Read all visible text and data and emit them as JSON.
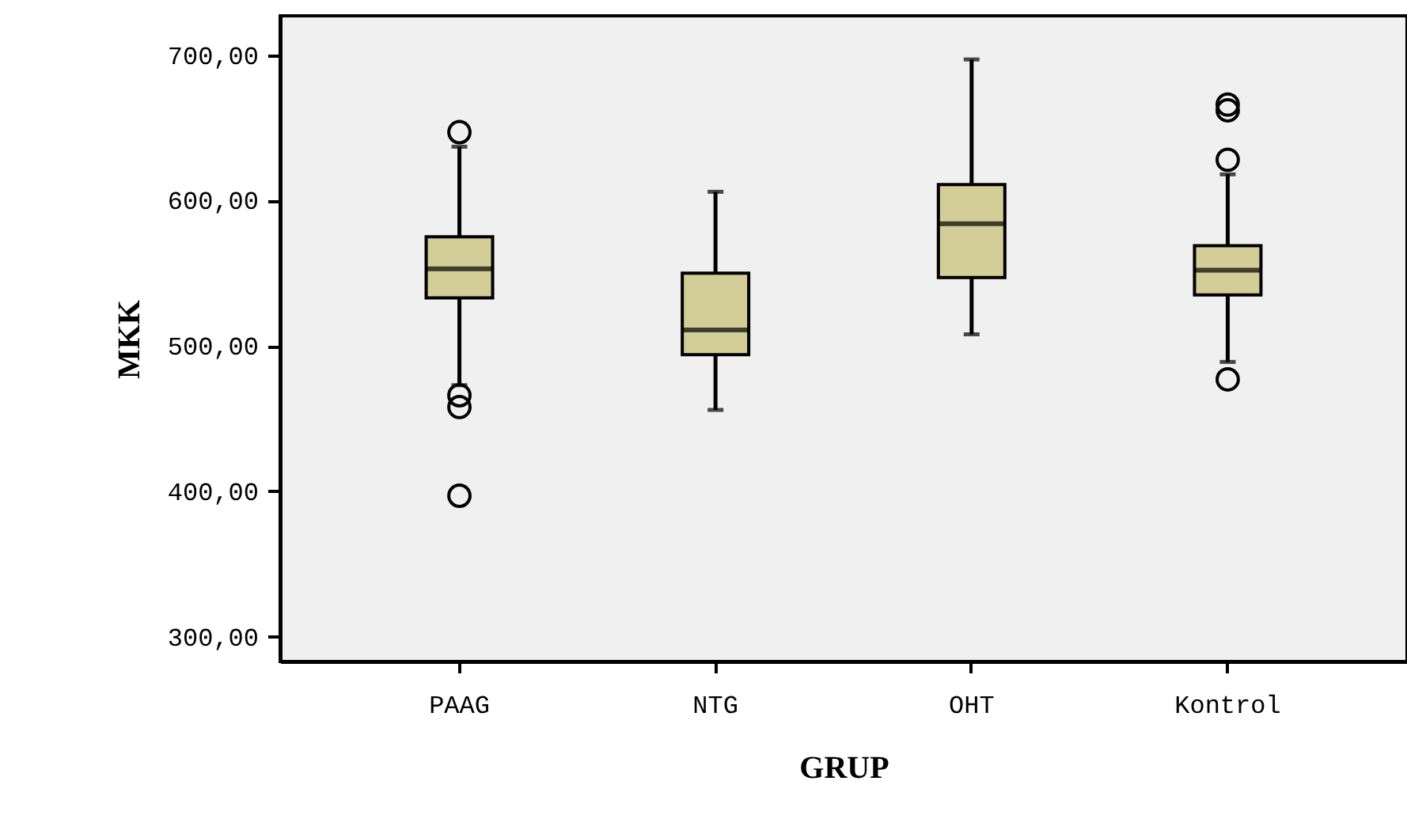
{
  "chart_data": {
    "type": "box",
    "xlabel": "GRUP",
    "ylabel": "MKK",
    "categories": [
      "PAAG",
      "NTG",
      "OHT",
      "Kontrol"
    ],
    "color": "#d3ce97",
    "marker": "circle",
    "boxes": [
      {
        "low": 473,
        "q1": 533,
        "median": 553,
        "q3": 575,
        "high": 637,
        "outliers": [
          647,
          466,
          458,
          397
        ]
      },
      {
        "low": 456,
        "q1": 494,
        "median": 511,
        "q3": 550,
        "high": 606
      },
      {
        "low": 508,
        "q1": 547,
        "median": 584,
        "q3": 611,
        "high": 697
      },
      {
        "low": 489,
        "q1": 535,
        "median": 552,
        "q3": 569,
        "high": 618,
        "outliers": [
          666,
          662,
          628,
          477
        ]
      }
    ],
    "ylim": [
      283,
      727
    ],
    "yticks": [
      {
        "value": 300,
        "label": "300,00"
      },
      {
        "value": 400,
        "label": "400,00"
      },
      {
        "value": 500,
        "label": "500,00"
      },
      {
        "value": 600,
        "label": "600,00"
      },
      {
        "value": 700,
        "label": "700,00"
      }
    ]
  }
}
